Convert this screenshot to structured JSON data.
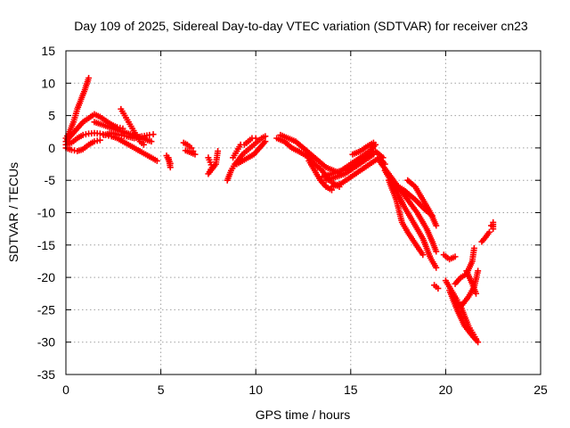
{
  "chart_data": {
    "type": "scatter",
    "title": "Day 109 of 2025, Sidereal Day-to-day VTEC variation (SDTVAR) for receiver cn23",
    "xlabel": "GPS time / hours",
    "ylabel": "SDTVAR / TECUs",
    "xlim": [
      0,
      25
    ],
    "ylim": [
      -35,
      15
    ],
    "xticks": [
      0,
      5,
      10,
      15,
      20,
      25
    ],
    "yticks": [
      -35,
      -30,
      -25,
      -20,
      -15,
      -10,
      -5,
      0,
      5,
      10,
      15
    ],
    "xtick_labels": [
      "0",
      "5",
      "10",
      "15",
      "20",
      "25"
    ],
    "ytick_labels": [
      "-35",
      "-30",
      "-25",
      "-20",
      "-15",
      "-10",
      "-5",
      "0",
      "5",
      "10",
      "15"
    ],
    "grid": true,
    "marker": "+",
    "color": "#ff0000",
    "series": [
      {
        "name": "arc-1",
        "points": [
          [
            0.0,
            1.5
          ],
          [
            0.2,
            2.5
          ],
          [
            0.4,
            4.0
          ],
          [
            0.6,
            6.0
          ],
          [
            0.8,
            7.5
          ],
          [
            1.0,
            9.0
          ],
          [
            1.2,
            10.8
          ]
        ]
      },
      {
        "name": "arc-2",
        "points": [
          [
            0.0,
            1.0
          ],
          [
            0.3,
            2.0
          ],
          [
            0.6,
            3.0
          ],
          [
            0.9,
            4.0
          ],
          [
            1.2,
            4.6
          ],
          [
            1.5,
            5.2
          ],
          [
            1.8,
            4.8
          ],
          [
            2.1,
            4.2
          ],
          [
            2.4,
            3.6
          ],
          [
            2.7,
            3.2
          ],
          [
            3.0,
            3.0
          ]
        ]
      },
      {
        "name": "arc-3",
        "points": [
          [
            0.0,
            0.5
          ],
          [
            0.3,
            0.8
          ],
          [
            0.6,
            1.5
          ],
          [
            0.9,
            2.0
          ],
          [
            1.2,
            2.2
          ],
          [
            1.5,
            2.3
          ],
          [
            1.8,
            2.2
          ],
          [
            2.1,
            2.0
          ],
          [
            2.4,
            1.8
          ],
          [
            2.7,
            1.5
          ],
          [
            3.0,
            1.0
          ],
          [
            3.3,
            0.5
          ],
          [
            3.6,
            0.0
          ],
          [
            3.9,
            -0.5
          ],
          [
            4.2,
            -1.0
          ],
          [
            4.5,
            -1.5
          ],
          [
            4.8,
            -2.0
          ]
        ]
      },
      {
        "name": "arc-4",
        "points": [
          [
            0.0,
            0.0
          ],
          [
            0.3,
            -0.3
          ],
          [
            0.6,
            -0.5
          ],
          [
            0.9,
            -0.2
          ],
          [
            1.2,
            0.5
          ],
          [
            1.5,
            1.0
          ],
          [
            1.8,
            1.2
          ]
        ]
      },
      {
        "name": "arc-5",
        "points": [
          [
            2.0,
            2.0
          ],
          [
            2.4,
            2.3
          ],
          [
            2.8,
            2.0
          ],
          [
            3.2,
            1.8
          ],
          [
            3.6,
            1.5
          ],
          [
            4.0,
            1.8
          ],
          [
            4.4,
            2.0
          ],
          [
            4.6,
            2.1
          ]
        ]
      },
      {
        "name": "arc-6",
        "points": [
          [
            2.9,
            6.0
          ],
          [
            3.1,
            5.0
          ],
          [
            3.3,
            4.0
          ],
          [
            3.5,
            3.0
          ],
          [
            3.7,
            2.0
          ],
          [
            3.9,
            1.0
          ],
          [
            4.1,
            0.5
          ]
        ]
      },
      {
        "name": "arc-7",
        "points": [
          [
            1.5,
            4.0
          ],
          [
            2.0,
            3.5
          ],
          [
            2.5,
            3.0
          ],
          [
            3.0,
            2.5
          ],
          [
            3.5,
            2.0
          ],
          [
            4.0,
            1.5
          ],
          [
            4.5,
            1.0
          ]
        ]
      },
      {
        "name": "arc-8",
        "points": [
          [
            5.3,
            -1.2
          ],
          [
            5.4,
            -1.8
          ],
          [
            5.5,
            -2.4
          ],
          [
            5.5,
            -3.0
          ],
          [
            5.4,
            -1.5
          ]
        ]
      },
      {
        "name": "arc-9",
        "points": [
          [
            6.2,
            0.8
          ],
          [
            6.4,
            0.5
          ],
          [
            6.6,
            0.0
          ],
          [
            6.7,
            -0.5
          ],
          [
            6.8,
            -1.0
          ],
          [
            6.3,
            -0.4
          ]
        ]
      },
      {
        "name": "arc-10",
        "points": [
          [
            7.5,
            -1.5
          ],
          [
            7.6,
            -2.2
          ],
          [
            7.7,
            -3.0
          ],
          [
            7.5,
            -4.0
          ],
          [
            7.9,
            -2.5
          ],
          [
            8.0,
            -0.5
          ]
        ]
      },
      {
        "name": "arc-11",
        "points": [
          [
            8.5,
            -5.0
          ],
          [
            8.7,
            -3.5
          ],
          [
            8.9,
            -2.5
          ],
          [
            9.1,
            -1.8
          ],
          [
            9.3,
            -1.0
          ],
          [
            9.5,
            -0.5
          ],
          [
            9.7,
            0.0
          ],
          [
            9.9,
            0.5
          ],
          [
            10.1,
            1.0
          ],
          [
            10.3,
            1.5
          ],
          [
            10.5,
            1.8
          ]
        ]
      },
      {
        "name": "arc-12",
        "points": [
          [
            8.8,
            -1.5
          ],
          [
            9.0,
            -0.5
          ],
          [
            9.2,
            0.5
          ],
          [
            9.4,
            0.5
          ],
          [
            9.6,
            1.0
          ],
          [
            9.8,
            1.5
          ],
          [
            10.0,
            1.5
          ]
        ]
      },
      {
        "name": "arc-13",
        "points": [
          [
            9.0,
            -2.5
          ],
          [
            9.3,
            -2.0
          ],
          [
            9.6,
            -1.5
          ],
          [
            9.9,
            -1.0
          ],
          [
            10.2,
            0.0
          ],
          [
            10.5,
            1.0
          ]
        ]
      },
      {
        "name": "arc-14",
        "points": [
          [
            11.1,
            1.5
          ],
          [
            11.5,
            1.0
          ],
          [
            11.9,
            0.0
          ],
          [
            12.3,
            -0.6
          ],
          [
            12.7,
            -1.3
          ],
          [
            13.1,
            -2.5
          ],
          [
            13.5,
            -3.5
          ],
          [
            13.8,
            -4.8
          ],
          [
            14.1,
            -5.5
          ],
          [
            14.4,
            -6.0
          ]
        ]
      },
      {
        "name": "arc-15",
        "points": [
          [
            11.3,
            2.0
          ],
          [
            11.7,
            1.5
          ],
          [
            12.1,
            1.0
          ],
          [
            12.5,
            0.0
          ],
          [
            12.9,
            -1.0
          ],
          [
            13.3,
            -2.0
          ],
          [
            13.7,
            -3.0
          ],
          [
            14.1,
            -3.5
          ],
          [
            14.5,
            -4.0
          ]
        ]
      },
      {
        "name": "arc-16",
        "points": [
          [
            12.8,
            -2.0
          ],
          [
            13.1,
            -3.5
          ],
          [
            13.4,
            -5.0
          ],
          [
            13.7,
            -6.0
          ],
          [
            14.0,
            -6.5
          ]
        ]
      },
      {
        "name": "arc-17",
        "points": [
          [
            13.5,
            -4.5
          ],
          [
            14.0,
            -4.0
          ],
          [
            14.5,
            -3.5
          ],
          [
            15.0,
            -2.5
          ],
          [
            15.5,
            -1.5
          ],
          [
            16.0,
            -0.5
          ],
          [
            16.3,
            0.5
          ]
        ]
      },
      {
        "name": "arc-18",
        "points": [
          [
            13.7,
            -5.0
          ],
          [
            14.2,
            -4.5
          ],
          [
            14.7,
            -4.0
          ],
          [
            15.2,
            -3.0
          ],
          [
            15.7,
            -2.0
          ],
          [
            16.2,
            -1.0
          ]
        ]
      },
      {
        "name": "arc-19",
        "points": [
          [
            14.0,
            -6.0
          ],
          [
            14.5,
            -5.5
          ],
          [
            15.0,
            -4.5
          ],
          [
            15.5,
            -3.5
          ],
          [
            16.0,
            -2.5
          ],
          [
            16.5,
            -1.5
          ],
          [
            16.8,
            -2.5
          ]
        ]
      },
      {
        "name": "arc-20",
        "points": [
          [
            14.8,
            -3.5
          ],
          [
            15.3,
            -2.5
          ],
          [
            15.8,
            -1.5
          ],
          [
            16.3,
            -0.5
          ],
          [
            16.7,
            -1.5
          ]
        ]
      },
      {
        "name": "arc-21",
        "points": [
          [
            15.1,
            -1.0
          ],
          [
            15.5,
            -0.5
          ],
          [
            15.9,
            0.3
          ],
          [
            16.2,
            0.8
          ]
        ]
      },
      {
        "name": "arc-22",
        "points": [
          [
            16.5,
            -2.0
          ],
          [
            17.0,
            -4.0
          ],
          [
            17.5,
            -6.0
          ],
          [
            18.0,
            -8.0
          ],
          [
            18.5,
            -10.0
          ],
          [
            19.0,
            -12.5
          ],
          [
            19.3,
            -14.5
          ],
          [
            19.5,
            -16.0
          ]
        ]
      },
      {
        "name": "arc-23",
        "points": [
          [
            16.8,
            -3.5
          ],
          [
            17.3,
            -6.0
          ],
          [
            17.8,
            -9.0
          ],
          [
            18.3,
            -11.5
          ],
          [
            18.8,
            -14.0
          ],
          [
            19.2,
            -17.0
          ],
          [
            19.5,
            -18.5
          ]
        ]
      },
      {
        "name": "arc-24",
        "points": [
          [
            17.0,
            -5.0
          ],
          [
            17.4,
            -8.0
          ],
          [
            17.7,
            -11.5
          ],
          [
            18.0,
            -13.0
          ],
          [
            18.4,
            -14.8
          ],
          [
            18.8,
            -16.5
          ]
        ]
      },
      {
        "name": "arc-25",
        "points": [
          [
            17.2,
            -5.5
          ],
          [
            17.8,
            -6.5
          ],
          [
            18.4,
            -8.0
          ],
          [
            18.9,
            -9.5
          ],
          [
            19.3,
            -10.5
          ]
        ]
      },
      {
        "name": "arc-26",
        "points": [
          [
            18.0,
            -5.0
          ],
          [
            18.4,
            -6.0
          ],
          [
            18.8,
            -8.0
          ],
          [
            19.2,
            -10.0
          ],
          [
            19.5,
            -12.0
          ]
        ]
      },
      {
        "name": "arc-27",
        "points": [
          [
            19.4,
            -21.2
          ],
          [
            19.6,
            -21.7
          ]
        ]
      },
      {
        "name": "arc-28",
        "points": [
          [
            19.9,
            -16.5
          ],
          [
            20.2,
            -17.2
          ],
          [
            20.5,
            -16.8
          ]
        ]
      },
      {
        "name": "arc-29",
        "points": [
          [
            20.0,
            -20.5
          ],
          [
            20.3,
            -22.0
          ],
          [
            20.6,
            -23.5
          ],
          [
            20.8,
            -24.5
          ],
          [
            21.0,
            -26.0
          ],
          [
            21.2,
            -27.5
          ],
          [
            21.4,
            -28.5
          ],
          [
            21.6,
            -29.5
          ]
        ]
      },
      {
        "name": "arc-30",
        "points": [
          [
            20.2,
            -22.0
          ],
          [
            20.6,
            -25.0
          ],
          [
            21.0,
            -27.5
          ],
          [
            21.4,
            -29.0
          ],
          [
            21.7,
            -30.0
          ]
        ]
      },
      {
        "name": "arc-31",
        "points": [
          [
            20.4,
            -23.5
          ],
          [
            20.8,
            -24.5
          ],
          [
            21.2,
            -23.0
          ],
          [
            21.5,
            -21.5
          ],
          [
            21.7,
            -19.0
          ]
        ]
      },
      {
        "name": "arc-32",
        "points": [
          [
            20.5,
            -21.0
          ],
          [
            20.8,
            -20.0
          ],
          [
            21.1,
            -19.5
          ],
          [
            21.4,
            -17.5
          ],
          [
            21.5,
            -15.5
          ]
        ]
      },
      {
        "name": "arc-33",
        "points": [
          [
            21.1,
            -19.0
          ],
          [
            21.4,
            -21.0
          ],
          [
            21.6,
            -22.5
          ]
        ]
      },
      {
        "name": "arc-34",
        "points": [
          [
            21.9,
            -14.5
          ],
          [
            22.1,
            -13.8
          ],
          [
            22.3,
            -13.0
          ]
        ]
      },
      {
        "name": "arc-35",
        "points": [
          [
            22.4,
            -12.0
          ],
          [
            22.5,
            -11.5
          ],
          [
            22.5,
            -12.5
          ]
        ]
      }
    ]
  }
}
